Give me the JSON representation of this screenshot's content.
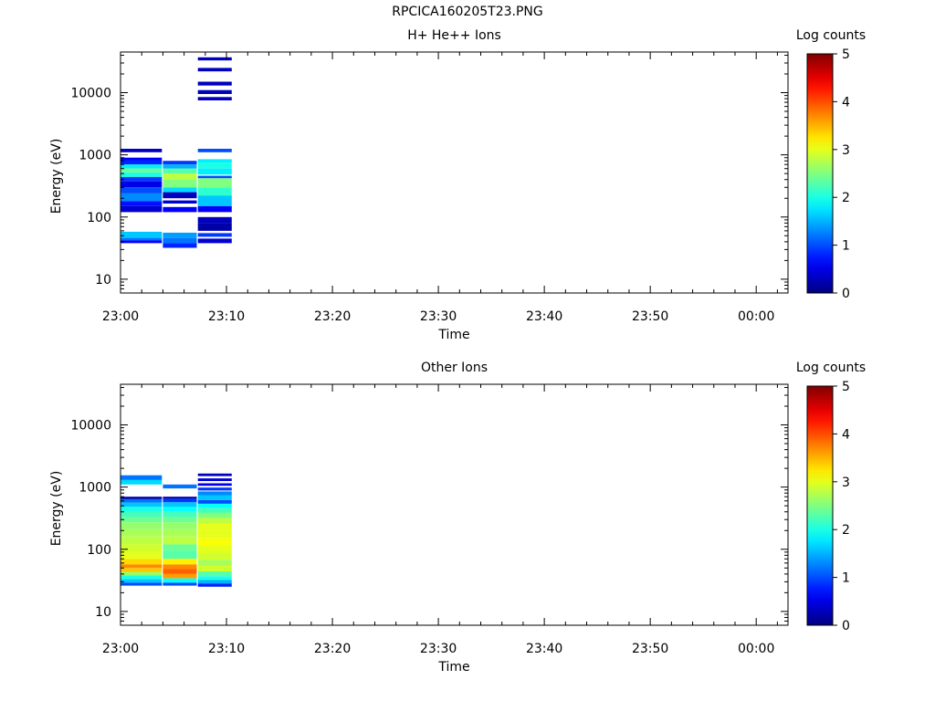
{
  "title": "RPCICA160205T23.PNG",
  "chart_data": [
    {
      "type": "heatmap",
      "title": "H+ He++ Ions",
      "xlabel": "Time",
      "ylabel": "Energy (eV)",
      "x_ticks": [
        "23:00",
        "23:10",
        "23:20",
        "23:30",
        "23:40",
        "23:50",
        "00:00"
      ],
      "x_range_minutes": [
        0,
        63
      ],
      "y_scale": "log",
      "ylim": [
        6,
        45000
      ],
      "y_ticks": [
        "10",
        "100",
        "1000",
        "10000"
      ],
      "y_tick_values": [
        10,
        100,
        1000,
        10000
      ],
      "colorbar": {
        "label": "Log counts",
        "min": 0,
        "max": 5,
        "ticks": [
          "0",
          "1",
          "2",
          "3",
          "4",
          "5"
        ]
      },
      "time_columns": [
        {
          "start_min": 0.0,
          "end_min": 3.9,
          "cells": [
            {
              "elo": 1100,
              "ehi": 1250,
              "v": 0.3
            },
            {
              "elo": 820,
              "ehi": 900,
              "v": 0.6
            },
            {
              "elo": 700,
              "ehi": 820,
              "v": 0.8
            },
            {
              "elo": 600,
              "ehi": 700,
              "v": 1.8
            },
            {
              "elo": 520,
              "ehi": 600,
              "v": 2.4
            },
            {
              "elo": 440,
              "ehi": 520,
              "v": 2.0
            },
            {
              "elo": 380,
              "ehi": 440,
              "v": 0.9
            },
            {
              "elo": 300,
              "ehi": 380,
              "v": 0.5
            },
            {
              "elo": 240,
              "ehi": 300,
              "v": 1.0
            },
            {
              "elo": 180,
              "ehi": 240,
              "v": 1.3
            },
            {
              "elo": 150,
              "ehi": 180,
              "v": 0.7
            },
            {
              "elo": 120,
              "ehi": 150,
              "v": 0.4
            },
            {
              "elo": 46,
              "ehi": 58,
              "v": 1.6
            },
            {
              "elo": 42,
              "ehi": 46,
              "v": 1.2
            },
            {
              "elo": 38,
              "ehi": 42,
              "v": 0.6
            }
          ]
        },
        {
          "start_min": 4.0,
          "end_min": 7.2,
          "cells": [
            {
              "elo": 700,
              "ehi": 800,
              "v": 0.9
            },
            {
              "elo": 600,
              "ehi": 700,
              "v": 1.5
            },
            {
              "elo": 500,
              "ehi": 600,
              "v": 2.3
            },
            {
              "elo": 400,
              "ehi": 500,
              "v": 2.8
            },
            {
              "elo": 300,
              "ehi": 400,
              "v": 2.5
            },
            {
              "elo": 250,
              "ehi": 300,
              "v": 1.7
            },
            {
              "elo": 200,
              "ehi": 250,
              "v": 0.3
            },
            {
              "elo": 165,
              "ehi": 185,
              "v": 0.4
            },
            {
              "elo": 120,
              "ehi": 145,
              "v": 0.6
            },
            {
              "elo": 46,
              "ehi": 56,
              "v": 1.4
            },
            {
              "elo": 38,
              "ehi": 46,
              "v": 1.2
            },
            {
              "elo": 32,
              "ehi": 38,
              "v": 0.8
            }
          ]
        },
        {
          "start_min": 7.3,
          "end_min": 10.5,
          "cells": [
            {
              "elo": 33000,
              "ehi": 37000,
              "v": 0.3
            },
            {
              "elo": 22000,
              "ehi": 25000,
              "v": 0.3
            },
            {
              "elo": 13000,
              "ehi": 15000,
              "v": 0.3
            },
            {
              "elo": 9500,
              "ehi": 11000,
              "v": 0.3
            },
            {
              "elo": 7500,
              "ehi": 8500,
              "v": 0.3
            },
            {
              "elo": 1100,
              "ehi": 1250,
              "v": 1.0
            },
            {
              "elo": 750,
              "ehi": 850,
              "v": 1.8
            },
            {
              "elo": 600,
              "ehi": 750,
              "v": 2.0
            },
            {
              "elo": 480,
              "ehi": 600,
              "v": 1.8
            },
            {
              "elo": 420,
              "ehi": 460,
              "v": 1.0
            },
            {
              "elo": 300,
              "ehi": 420,
              "v": 2.5
            },
            {
              "elo": 220,
              "ehi": 300,
              "v": 2.1
            },
            {
              "elo": 150,
              "ehi": 220,
              "v": 1.6
            },
            {
              "elo": 120,
              "ehi": 150,
              "v": 0.6
            },
            {
              "elo": 80,
              "ehi": 100,
              "v": 0.3
            },
            {
              "elo": 60,
              "ehi": 80,
              "v": 0.2
            },
            {
              "elo": 48,
              "ehi": 55,
              "v": 0.9
            },
            {
              "elo": 38,
              "ehi": 45,
              "v": 0.4
            }
          ]
        }
      ]
    },
    {
      "type": "heatmap",
      "title": "Other Ions",
      "xlabel": "Time",
      "ylabel": "Energy (eV)",
      "x_ticks": [
        "23:00",
        "23:10",
        "23:20",
        "23:30",
        "23:40",
        "23:50",
        "00:00"
      ],
      "x_range_minutes": [
        0,
        63
      ],
      "y_scale": "log",
      "ylim": [
        6,
        45000
      ],
      "y_ticks": [
        "10",
        "100",
        "1000",
        "10000"
      ],
      "y_tick_values": [
        10,
        100,
        1000,
        10000
      ],
      "colorbar": {
        "label": "Log counts",
        "min": 0,
        "max": 5,
        "ticks": [
          "0",
          "1",
          "2",
          "3",
          "4",
          "5"
        ]
      },
      "time_columns": [
        {
          "start_min": 0.0,
          "end_min": 3.9,
          "cells": [
            {
              "elo": 1300,
              "ehi": 1550,
              "v": 1.2
            },
            {
              "elo": 1100,
              "ehi": 1300,
              "v": 1.7
            },
            {
              "elo": 640,
              "ehi": 700,
              "v": 0.2
            },
            {
              "elo": 560,
              "ehi": 640,
              "v": 1.2
            },
            {
              "elo": 480,
              "ehi": 560,
              "v": 1.6
            },
            {
              "elo": 400,
              "ehi": 480,
              "v": 2.0
            },
            {
              "elo": 330,
              "ehi": 400,
              "v": 2.2
            },
            {
              "elo": 270,
              "ehi": 330,
              "v": 2.4
            },
            {
              "elo": 210,
              "ehi": 270,
              "v": 2.6
            },
            {
              "elo": 160,
              "ehi": 210,
              "v": 2.7
            },
            {
              "elo": 120,
              "ehi": 160,
              "v": 2.8
            },
            {
              "elo": 90,
              "ehi": 120,
              "v": 2.9
            },
            {
              "elo": 70,
              "ehi": 90,
              "v": 3.0
            },
            {
              "elo": 57,
              "ehi": 70,
              "v": 3.3
            },
            {
              "elo": 50,
              "ehi": 57,
              "v": 3.7
            },
            {
              "elo": 43,
              "ehi": 50,
              "v": 3.4
            },
            {
              "elo": 38,
              "ehi": 43,
              "v": 2.6
            },
            {
              "elo": 33,
              "ehi": 38,
              "v": 2.0
            },
            {
              "elo": 29,
              "ehi": 33,
              "v": 1.6
            },
            {
              "elo": 26,
              "ehi": 29,
              "v": 1.0
            }
          ]
        },
        {
          "start_min": 4.0,
          "end_min": 7.2,
          "cells": [
            {
              "elo": 950,
              "ehi": 1100,
              "v": 1.2
            },
            {
              "elo": 650,
              "ehi": 700,
              "v": 0.2
            },
            {
              "elo": 570,
              "ehi": 650,
              "v": 0.9
            },
            {
              "elo": 480,
              "ehi": 570,
              "v": 1.6
            },
            {
              "elo": 400,
              "ehi": 480,
              "v": 1.9
            },
            {
              "elo": 330,
              "ehi": 400,
              "v": 2.2
            },
            {
              "elo": 270,
              "ehi": 330,
              "v": 2.4
            },
            {
              "elo": 210,
              "ehi": 270,
              "v": 2.6
            },
            {
              "elo": 160,
              "ehi": 210,
              "v": 2.7
            },
            {
              "elo": 120,
              "ehi": 160,
              "v": 2.8
            },
            {
              "elo": 95,
              "ehi": 120,
              "v": 2.4
            },
            {
              "elo": 70,
              "ehi": 95,
              "v": 2.3
            },
            {
              "elo": 57,
              "ehi": 70,
              "v": 3.2
            },
            {
              "elo": 48,
              "ehi": 57,
              "v": 3.7
            },
            {
              "elo": 40,
              "ehi": 48,
              "v": 3.9
            },
            {
              "elo": 34,
              "ehi": 40,
              "v": 3.6
            },
            {
              "elo": 29,
              "ehi": 34,
              "v": 1.9
            },
            {
              "elo": 26,
              "ehi": 29,
              "v": 1.0
            }
          ]
        },
        {
          "start_min": 7.3,
          "end_min": 10.5,
          "cells": [
            {
              "elo": 1500,
              "ehi": 1650,
              "v": 0.3
            },
            {
              "elo": 1250,
              "ehi": 1380,
              "v": 0.4
            },
            {
              "elo": 1050,
              "ehi": 1150,
              "v": 0.5
            },
            {
              "elo": 880,
              "ehi": 980,
              "v": 0.9
            },
            {
              "elo": 740,
              "ehi": 850,
              "v": 1.3
            },
            {
              "elo": 620,
              "ehi": 740,
              "v": 1.6
            },
            {
              "elo": 540,
              "ehi": 620,
              "v": 1.0
            },
            {
              "elo": 460,
              "ehi": 540,
              "v": 1.9
            },
            {
              "elo": 390,
              "ehi": 460,
              "v": 2.2
            },
            {
              "elo": 320,
              "ehi": 390,
              "v": 2.5
            },
            {
              "elo": 260,
              "ehi": 320,
              "v": 2.8
            },
            {
              "elo": 200,
              "ehi": 260,
              "v": 3.0
            },
            {
              "elo": 150,
              "ehi": 200,
              "v": 3.0
            },
            {
              "elo": 115,
              "ehi": 150,
              "v": 3.1
            },
            {
              "elo": 88,
              "ehi": 115,
              "v": 3.0
            },
            {
              "elo": 68,
              "ehi": 88,
              "v": 2.9
            },
            {
              "elo": 54,
              "ehi": 68,
              "v": 2.7
            },
            {
              "elo": 44,
              "ehi": 54,
              "v": 2.9
            },
            {
              "elo": 37,
              "ehi": 44,
              "v": 2.3
            },
            {
              "elo": 32,
              "ehi": 37,
              "v": 2.0
            },
            {
              "elo": 28,
              "ehi": 32,
              "v": 1.5
            },
            {
              "elo": 25,
              "ehi": 28,
              "v": 0.8
            }
          ]
        }
      ]
    }
  ]
}
